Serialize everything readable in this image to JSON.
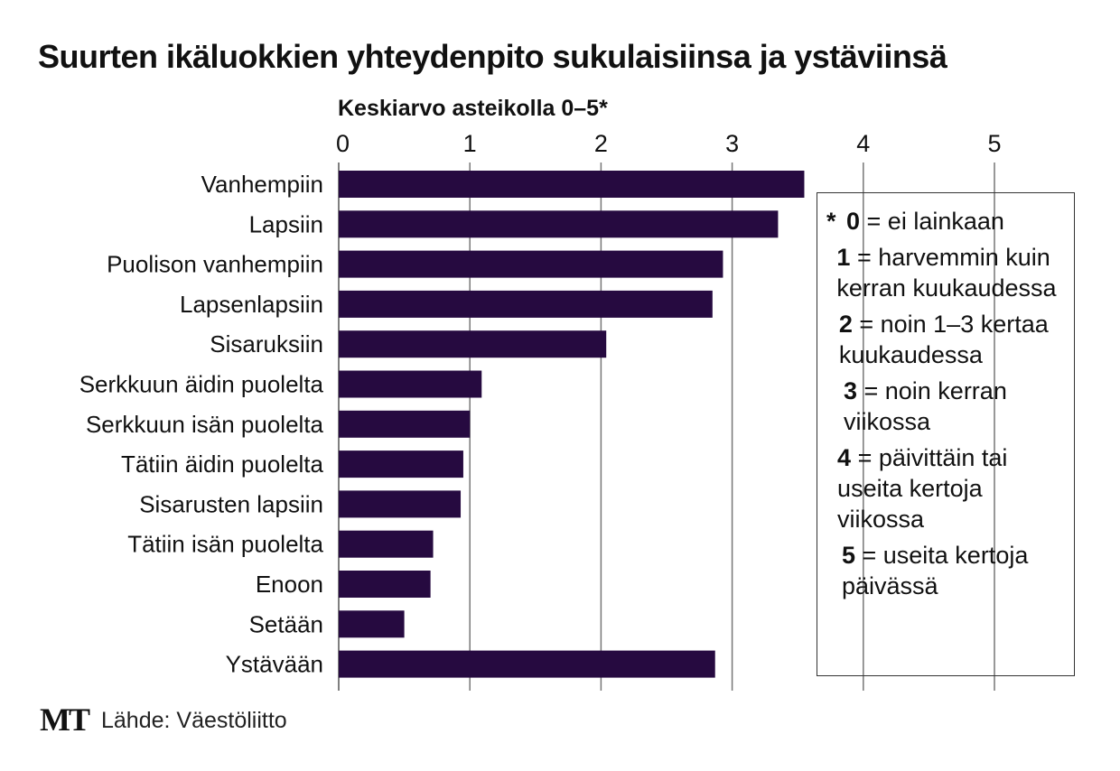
{
  "chart_data": {
    "type": "bar",
    "orientation": "horizontal",
    "title": "Suurten ikäluokkien yhteydenpito sukulaisiinsa ja ystäviinsä",
    "xlabel": "Keskiarvo asteikolla 0–5*",
    "ylabel": "",
    "xlim": [
      0,
      5
    ],
    "ticks": [
      "0",
      "1",
      "2",
      "3",
      "4",
      "5"
    ],
    "grid": true,
    "categories": [
      "Vanhempiin",
      "Lapsiin",
      "Puolison vanhempiin",
      "Lapsenlapsiin",
      "Sisaruksiin",
      "Serkkuun äidin puolelta",
      "Serkkuun isän puolelta",
      "Tätiin äidin puolelta",
      "Sisarusten lapsiin",
      "Tätiin isän puolelta",
      "Enoon",
      "Setään",
      "Ystävään"
    ],
    "values": [
      3.55,
      3.35,
      2.93,
      2.85,
      2.04,
      1.09,
      1.0,
      0.95,
      0.93,
      0.72,
      0.7,
      0.5,
      2.87
    ],
    "bar_color": "#260a40"
  },
  "legend": [
    {
      "star": "*",
      "key": "0",
      "text": " = ei lainkaan"
    },
    {
      "star": "",
      "key": "1",
      "text": " = harvemmin kuin kerran kuukaudessa"
    },
    {
      "star": "",
      "key": "2",
      "text": " = noin 1–3 kertaa kuukaudessa"
    },
    {
      "star": "",
      "key": "3",
      "text": " = noin kerran viikossa"
    },
    {
      "star": "",
      "key": "4",
      "text": " = päivittäin tai useita kertoja viikossa"
    },
    {
      "star": "",
      "key": "5",
      "text": " = useita kertoja päivässä"
    }
  ],
  "footer": {
    "logo": "MT",
    "source": "Lähde: Väestöliitto"
  }
}
